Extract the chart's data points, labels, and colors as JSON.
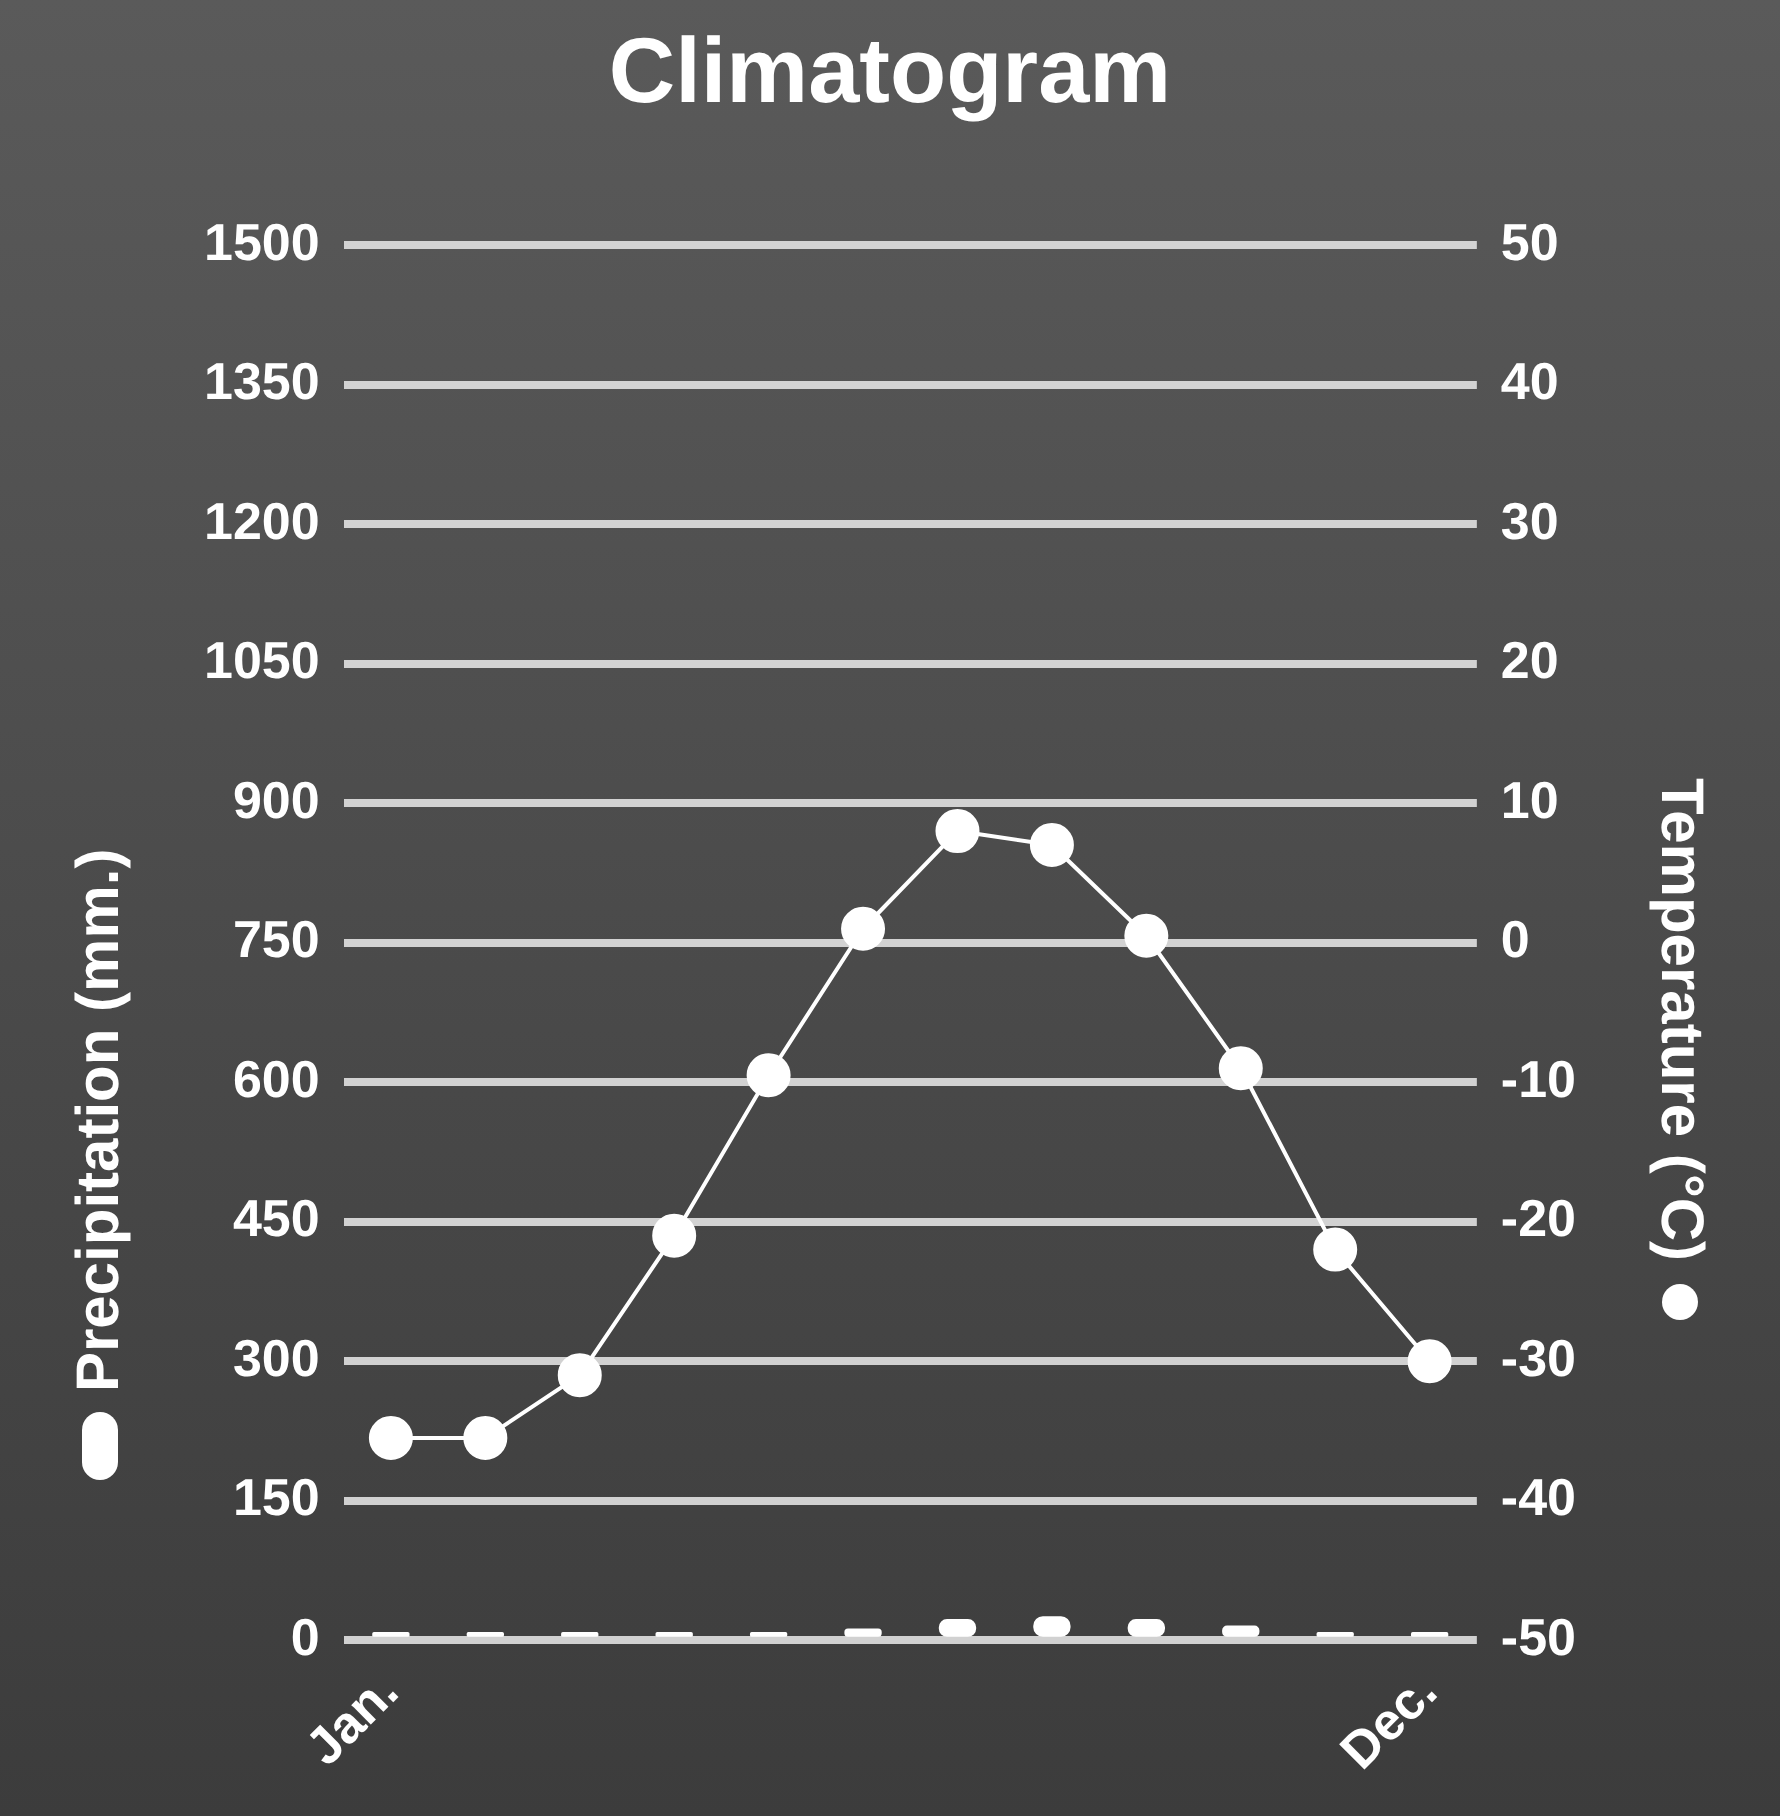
{
  "chart_data": {
    "type": "line",
    "title": "Climatogram",
    "ylabel": "Precipitation (mm.)",
    "y2label": "Temperature (°C)",
    "categories": [
      "Jan.",
      null,
      null,
      null,
      null,
      null,
      null,
      null,
      null,
      null,
      null,
      "Dec."
    ],
    "series": [
      {
        "type": "bar",
        "color": "#ffffff",
        "values": [
          8,
          8,
          8,
          8,
          8,
          12,
          22,
          25,
          22,
          15,
          8,
          8
        ]
      },
      {
        "axis": "y2",
        "color": "#ffffff",
        "marker": "circle",
        "values": [
          -35.5,
          -35.5,
          -31,
          -21,
          -9.5,
          1,
          8,
          7,
          0.5,
          -9,
          -22,
          -30
        ]
      }
    ],
    "ylim": [
      0,
      1500
    ],
    "yticks": [
      0,
      150,
      300,
      450,
      600,
      750,
      900,
      1050,
      1200,
      1350,
      1500
    ],
    "y2lim": [
      -50,
      50
    ],
    "y2ticks": [
      -50,
      -40,
      -30,
      -20,
      -10,
      0,
      10,
      20,
      30,
      40,
      50
    ],
    "grid": "y"
  }
}
